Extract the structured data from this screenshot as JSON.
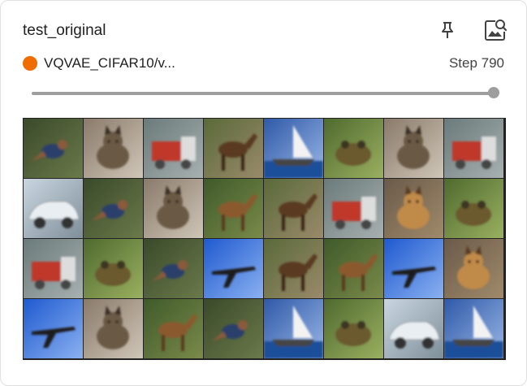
{
  "card": {
    "title": "test_original",
    "run_name": "VQVAE_CIFAR10/v...",
    "run_color": "#ef6c00",
    "step_label": "Step 790",
    "pin_icon": "pin-icon",
    "image_icon": "image-search-icon",
    "slider_fraction": 1.0
  },
  "grid": {
    "rows": 4,
    "cols": 8,
    "tiles": [
      "bird",
      "cat",
      "truck",
      "horse",
      "ship",
      "frog",
      "cat",
      "truck",
      "automobile",
      "bird",
      "cat",
      "deer",
      "horse",
      "truck",
      "dog",
      "frog",
      "truck",
      "frog",
      "bird",
      "airplane",
      "horse",
      "deer",
      "airplane",
      "dog",
      "airplane",
      "cat",
      "deer",
      "bird",
      "ship",
      "frog",
      "automobile",
      "ship"
    ]
  }
}
